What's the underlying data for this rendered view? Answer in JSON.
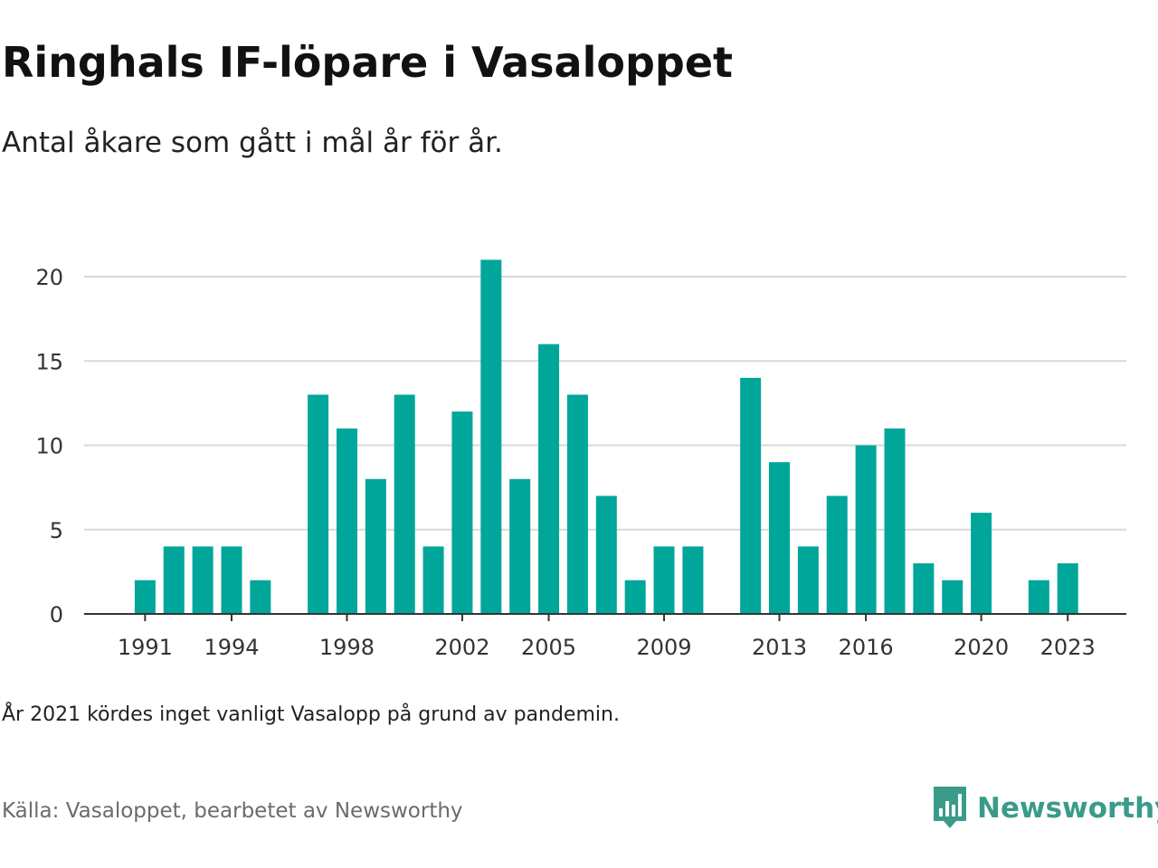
{
  "header": {
    "title": "Ringhals IF-löpare i Vasaloppet",
    "subtitle": "Antal åkare som gått i mål år för år."
  },
  "footer": {
    "note": "År 2021 kördes inget vanligt Vasalopp på grund av pandemin.",
    "source": "Källa: Vasaloppet, bearbetet av Newsworthy",
    "logo_text": "Newsworthy"
  },
  "colors": {
    "bar": "#00a69a",
    "logo": "#3a9b8b",
    "gridline": "#d9d9d9",
    "axis": "#333333"
  },
  "chart_data": {
    "type": "bar",
    "title": "Ringhals IF-löpare i Vasaloppet",
    "subtitle": "Antal åkare som gått i mål år för år.",
    "xlabel": "",
    "ylabel": "",
    "ylim": [
      0,
      21
    ],
    "yticks": [
      0,
      5,
      10,
      15,
      20
    ],
    "xticks": [
      "1991",
      "1994",
      "1998",
      "2002",
      "2005",
      "2009",
      "2013",
      "2016",
      "2020",
      "2023"
    ],
    "grid": "horizontal",
    "categories": [
      1990,
      1991,
      1992,
      1993,
      1994,
      1995,
      1996,
      1997,
      1998,
      1999,
      2000,
      2001,
      2002,
      2003,
      2004,
      2005,
      2006,
      2007,
      2008,
      2009,
      2010,
      2011,
      2012,
      2013,
      2014,
      2015,
      2016,
      2017,
      2018,
      2019,
      2020,
      2021,
      2022,
      2023,
      2024
    ],
    "values": [
      null,
      2,
      4,
      4,
      4,
      2,
      null,
      13,
      11,
      8,
      13,
      4,
      12,
      21,
      8,
      16,
      13,
      7,
      2,
      4,
      4,
      null,
      14,
      9,
      4,
      7,
      10,
      11,
      3,
      2,
      6,
      null,
      2,
      3,
      null
    ]
  }
}
